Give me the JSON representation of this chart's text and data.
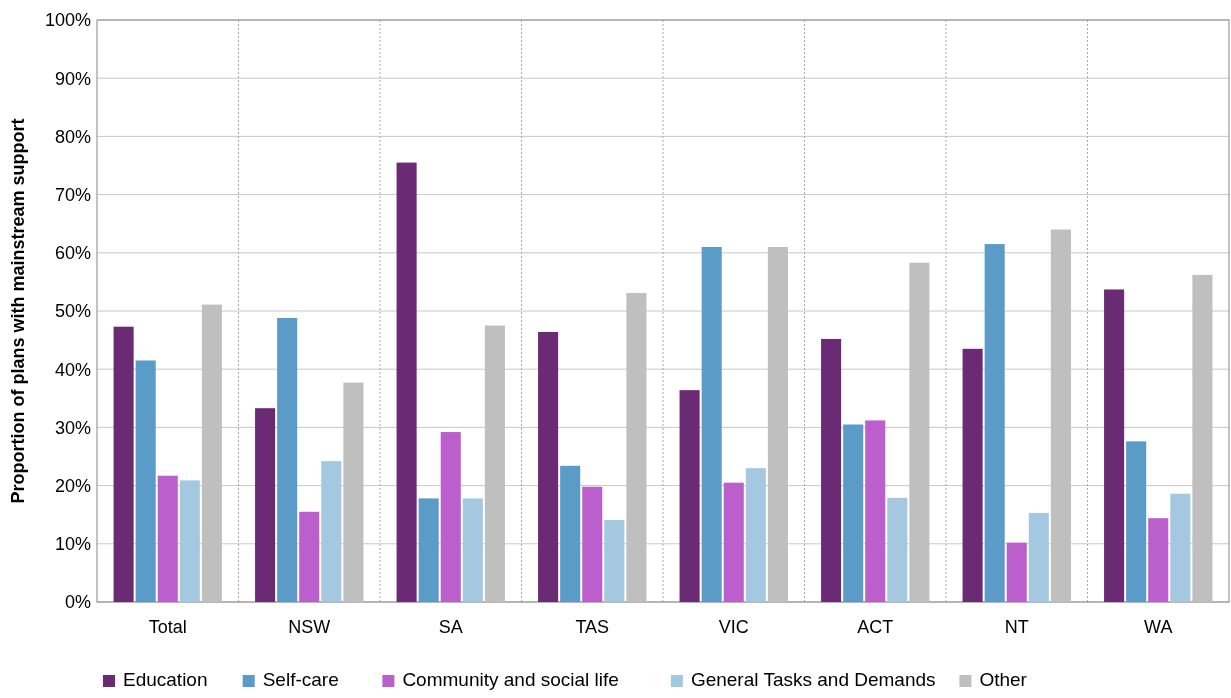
{
  "chart_data": {
    "type": "bar",
    "ylabel": "Proportion of plans with mainstream support",
    "categories": [
      "Total",
      "NSW",
      "SA",
      "TAS",
      "VIC",
      "ACT",
      "NT",
      "WA"
    ],
    "series": [
      {
        "name": "Education",
        "color": "#6b2a74",
        "values": [
          47.3,
          33.3,
          75.5,
          46.4,
          36.4,
          45.2,
          43.5,
          53.7
        ]
      },
      {
        "name": "Self-care",
        "color": "#5b9bc8",
        "values": [
          41.5,
          48.8,
          17.8,
          23.4,
          61.0,
          30.5,
          61.5,
          27.6
        ]
      },
      {
        "name": "Community and social life",
        "color": "#bb5fcc",
        "values": [
          21.7,
          15.5,
          29.2,
          19.8,
          20.5,
          31.2,
          10.2,
          14.4
        ]
      },
      {
        "name": "General Tasks and Demands",
        "color": "#a5c8e1",
        "values": [
          20.9,
          24.2,
          17.8,
          14.1,
          23.0,
          17.9,
          15.3,
          18.6
        ]
      },
      {
        "name": "Other",
        "color": "#bfbfbf",
        "values": [
          51.1,
          37.7,
          47.5,
          53.1,
          61.0,
          58.3,
          64.0,
          56.2
        ]
      }
    ],
    "ylim": [
      0,
      100
    ],
    "yticks": [
      {
        "value": 0,
        "label": "0%"
      },
      {
        "value": 10,
        "label": "10%"
      },
      {
        "value": 20,
        "label": "20%"
      },
      {
        "value": 30,
        "label": "30%"
      },
      {
        "value": 40,
        "label": "40%"
      },
      {
        "value": 50,
        "label": "50%"
      },
      {
        "value": 60,
        "label": "60%"
      },
      {
        "value": 70,
        "label": "70%"
      },
      {
        "value": 80,
        "label": "80%"
      },
      {
        "value": 90,
        "label": "90%"
      },
      {
        "value": 100,
        "label": "100%"
      }
    ],
    "grid": true,
    "legend": "bottom"
  }
}
